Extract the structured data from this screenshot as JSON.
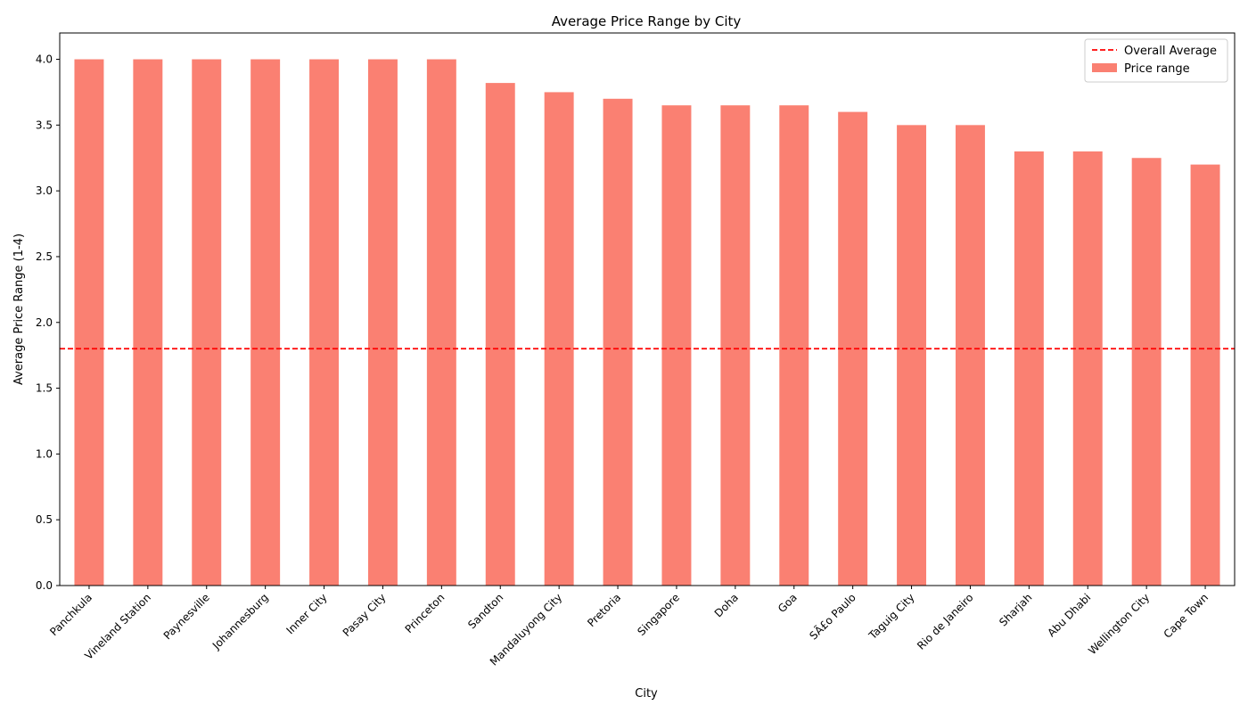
{
  "chart_data": {
    "type": "bar",
    "title": "Average Price Range by City",
    "xlabel": "City",
    "ylabel": "Average Price Range (1-4)",
    "categories": [
      "Panchkula",
      "Vineland Station",
      "Paynesville",
      "Johannesburg",
      "Inner City",
      "Pasay City",
      "Princeton",
      "Sandton",
      "Mandaluyong City",
      "Pretoria",
      "Singapore",
      "Doha",
      "Goa",
      "SÃ£o Paulo",
      "Taguig City",
      "Rio de Janeiro",
      "Sharjah",
      "Abu Dhabi",
      "Wellington City",
      "Cape Town"
    ],
    "series": [
      {
        "name": "Price range",
        "color": "#fa8072",
        "values": [
          4.0,
          4.0,
          4.0,
          4.0,
          4.0,
          4.0,
          4.0,
          3.82,
          3.75,
          3.7,
          3.65,
          3.65,
          3.65,
          3.6,
          3.5,
          3.5,
          3.3,
          3.3,
          3.25,
          3.2
        ]
      }
    ],
    "reference_line": {
      "name": "Overall Average",
      "value": 1.8,
      "color": "#ff0000",
      "style": "dashed"
    },
    "ylim": [
      0,
      4.2
    ],
    "yticks": [
      "0.0",
      "0.5",
      "1.0",
      "1.5",
      "2.0",
      "2.5",
      "3.0",
      "3.5",
      "4.0"
    ],
    "grid": false,
    "legend_position": "top-right"
  }
}
